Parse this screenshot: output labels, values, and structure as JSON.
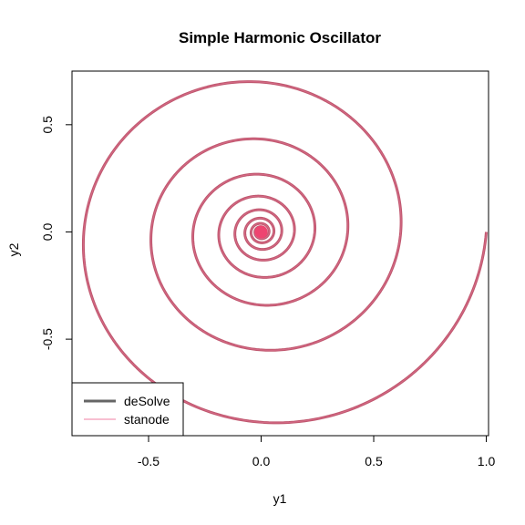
{
  "chart_data": {
    "type": "line",
    "title": "Simple Harmonic Oscillator",
    "xlabel": "y1",
    "ylabel": "y2",
    "xlim": [
      -0.84,
      1.01
    ],
    "ylim": [
      -0.95,
      0.75
    ],
    "xticks": [
      -0.5,
      0.0,
      0.5,
      1.0
    ],
    "xtick_labels": [
      "-0.5",
      "0.0",
      "0.5",
      "1.0"
    ],
    "yticks": [
      -0.5,
      0.0,
      0.5
    ],
    "ytick_labels": [
      "-0.5",
      "0.0",
      "0.5"
    ],
    "grid": false,
    "legend_position": "bottom-left",
    "trajectory": {
      "start": [
        1.0,
        0.0
      ],
      "decay_per_revolution": 0.62,
      "direction": "clockwise",
      "revolutions": 12
    },
    "series": [
      {
        "name": "deSolve",
        "color": "#666666"
      },
      {
        "name": "stanode",
        "color": "#f07fa3"
      }
    ],
    "overlap_color": "#c0586f",
    "center_marker": {
      "x": 0.0,
      "y": 0.0,
      "color": "#ee4470"
    }
  }
}
